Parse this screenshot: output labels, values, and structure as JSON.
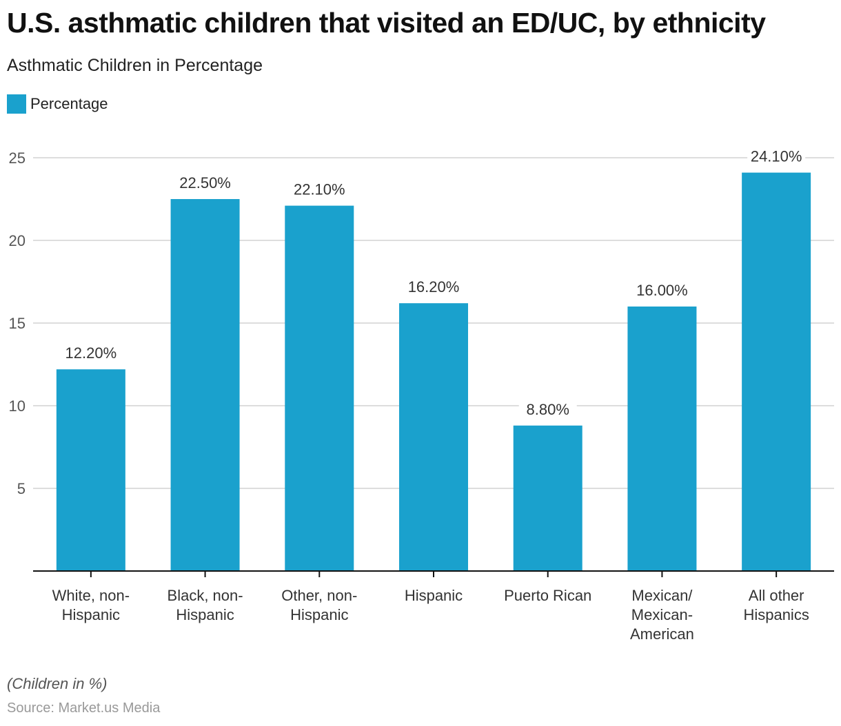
{
  "header": {
    "title": "U.S. asthmatic children that visited an ED/UC, by ethnicity",
    "subtitle": "Asthmatic Children in Percentage"
  },
  "legend": {
    "items": [
      {
        "label": "Percentage",
        "color": "#1aa1cd"
      }
    ]
  },
  "footer": {
    "note": "(Children in %)",
    "source": "Source: Market.us Media"
  },
  "chart_data": {
    "type": "bar",
    "title": "U.S. asthmatic children that visited an ED/UC, by ethnicity",
    "subtitle": "Asthmatic Children in Percentage",
    "xlabel": "",
    "ylabel": "",
    "ylim": [
      0,
      25
    ],
    "yticks": [
      5,
      10,
      15,
      20,
      25
    ],
    "grid": true,
    "legend_position": "top-left",
    "categories": [
      [
        "White, non-",
        "Hispanic"
      ],
      [
        "Black, non-",
        "Hispanic"
      ],
      [
        "Other, non-",
        "Hispanic"
      ],
      [
        "Hispanic"
      ],
      [
        "Puerto Rican"
      ],
      [
        "Mexican/",
        "Mexican-",
        "American"
      ],
      [
        "All other",
        "Hispanics"
      ]
    ],
    "series": [
      {
        "name": "Percentage",
        "color": "#1aa1cd",
        "values": [
          12.2,
          22.5,
          22.1,
          16.2,
          8.8,
          16.0,
          24.1
        ],
        "labels": [
          "12.20%",
          "22.50%",
          "22.10%",
          "16.20%",
          "8.80%",
          "16.00%",
          "24.10%"
        ]
      }
    ]
  }
}
